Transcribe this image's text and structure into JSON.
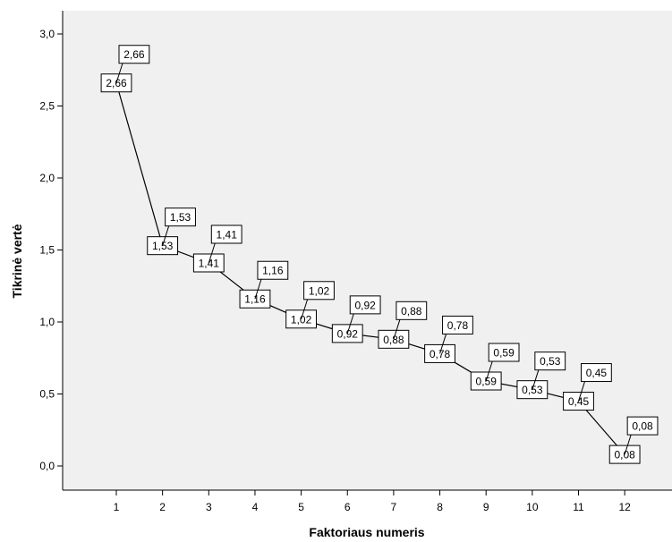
{
  "chart_data": {
    "type": "line",
    "xlabel": "Faktoriaus numeris",
    "ylabel": "Tikrinė vertė",
    "x": [
      1,
      2,
      3,
      4,
      5,
      6,
      7,
      8,
      9,
      10,
      11,
      12
    ],
    "y": [
      2.66,
      1.53,
      1.41,
      1.16,
      1.02,
      0.92,
      0.88,
      0.78,
      0.59,
      0.53,
      0.45,
      0.08
    ],
    "data_labels": [
      "2,66",
      "1,53",
      "1,41",
      "1,16",
      "1,02",
      "0,92",
      "0,88",
      "0,78",
      "0,59",
      "0,53",
      "0,45",
      "0,08"
    ],
    "xticks": [
      "1",
      "2",
      "3",
      "4",
      "5",
      "6",
      "7",
      "8",
      "9",
      "10",
      "11",
      "12"
    ],
    "yticks": [
      "0,0",
      "0,5",
      "1,0",
      "1,5",
      "2,0",
      "2,5",
      "3,0"
    ],
    "ylim": [
      0,
      3
    ],
    "grid": false,
    "marker": "open circle",
    "colors": {
      "plot_background": "#f0f0f0",
      "line": "#000000",
      "label_box": "#ffffff"
    }
  }
}
